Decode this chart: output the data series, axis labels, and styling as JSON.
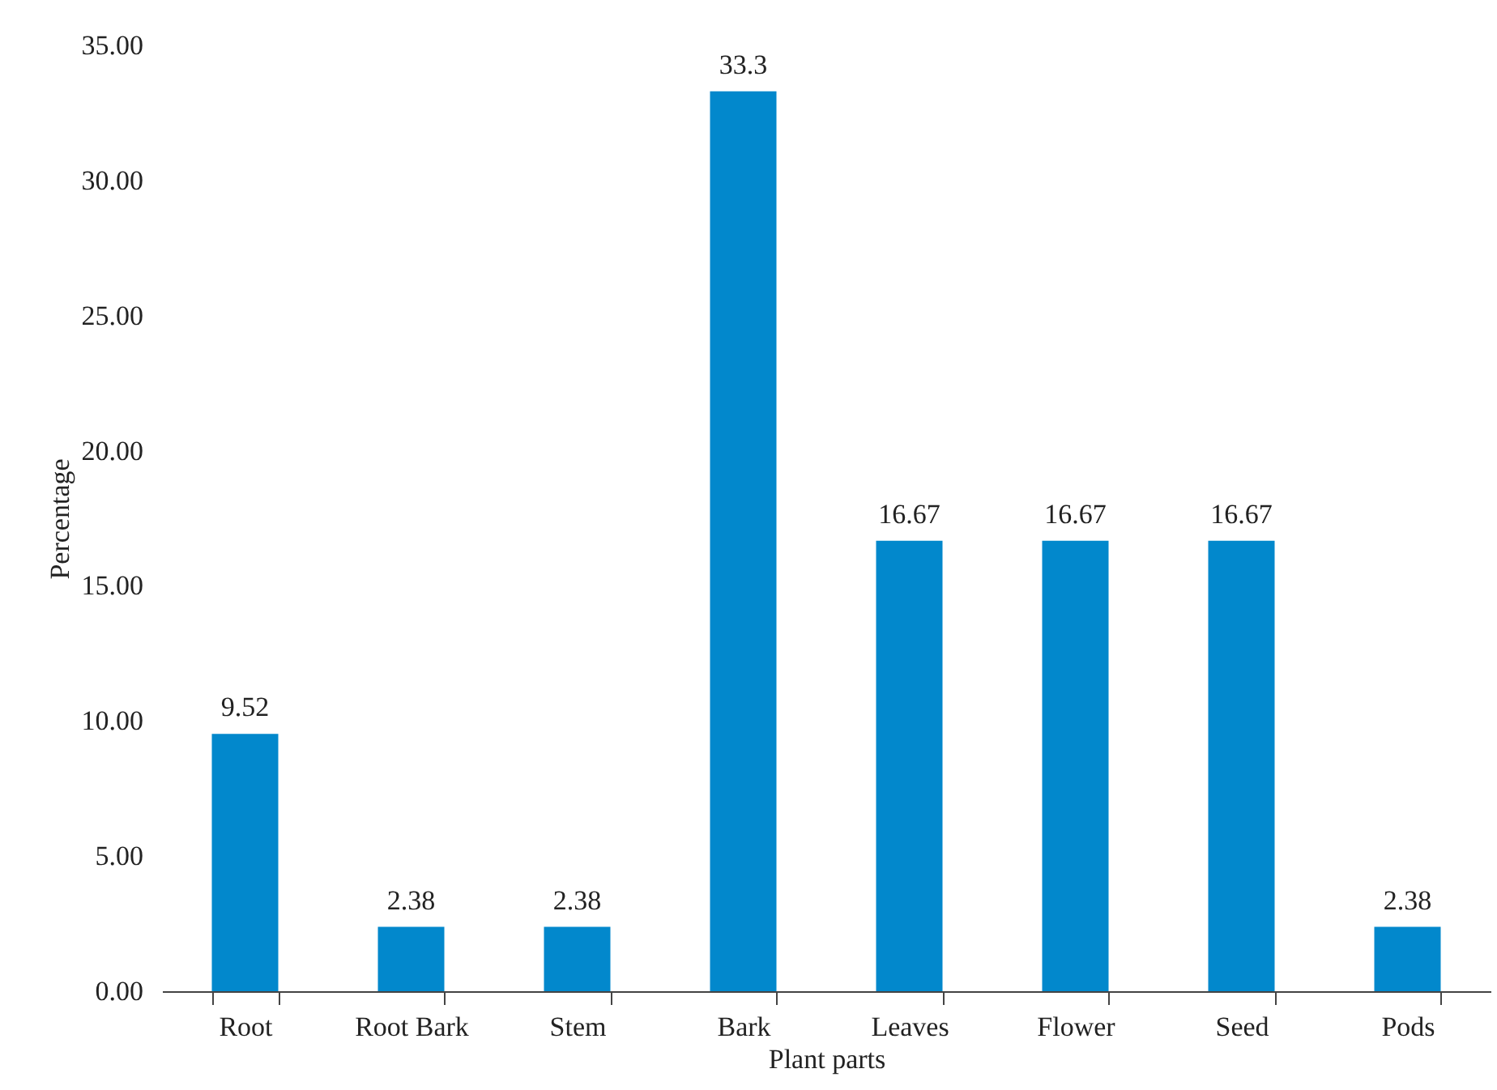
{
  "chart_data": {
    "type": "bar",
    "xlabel": "Plant parts",
    "ylabel": "Percentage",
    "categories": [
      "Root",
      "Root Bark",
      "Stem",
      "Bark",
      "Leaves",
      "Flower",
      "Seed",
      "Pods"
    ],
    "values": [
      9.52,
      2.38,
      2.38,
      33.3,
      16.67,
      16.67,
      16.67,
      2.38
    ],
    "color": "#0288cc",
    "data_labels": true,
    "grid": false,
    "ylim": [
      0,
      35
    ],
    "yticks": [
      {
        "value": 0,
        "label": "0.00"
      },
      {
        "value": 5,
        "label": "5.00"
      },
      {
        "value": 10,
        "label": "10.00"
      },
      {
        "value": 15,
        "label": "15.00"
      },
      {
        "value": 20,
        "label": "20.00"
      },
      {
        "value": 25,
        "label": "25.00"
      },
      {
        "value": 30,
        "label": "30.00"
      },
      {
        "value": 35,
        "label": "35.00"
      }
    ]
  }
}
